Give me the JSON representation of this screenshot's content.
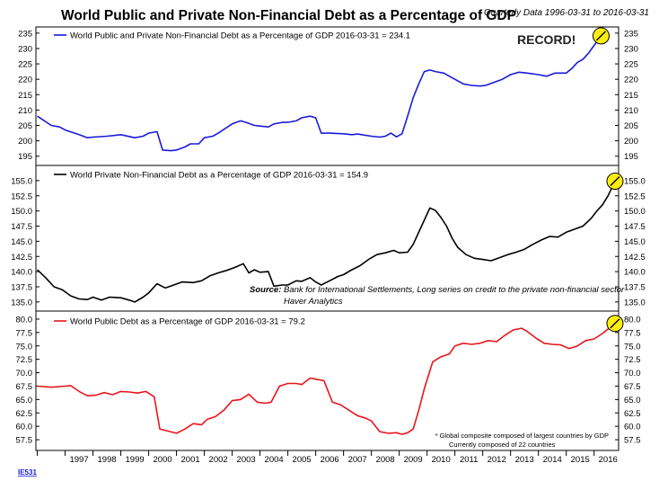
{
  "title": "World Public and Private Non-Financial Debt as a Percentage of GDP",
  "subtitle": "Quarterly Data 1996-03-31 to 2016-03-31",
  "footer_code": "IE531",
  "record_label": "RECORD!",
  "source": {
    "label": "Source:",
    "line1": "Bank for International Settlements, Long series on credit to the private non-financial sector",
    "line2": "Haver Analytics"
  },
  "footnote": {
    "line1": "* Global composite composed of largest countries by GDP",
    "line2": "Currently composed of 22 countries"
  },
  "colors": {
    "total": "#1a1adb",
    "private": "#000000",
    "public": "#e8151b",
    "marker": "#ffee11"
  },
  "chart_data": [
    {
      "type": "line",
      "legend": "World Public and Private Non-Financial Debt as a Percentage of GDP 2016-03-31 = 234.1",
      "ylim": [
        192,
        237
      ],
      "yticks": [
        "235",
        "230",
        "225",
        "220",
        "215",
        "210",
        "205",
        "200",
        "195"
      ],
      "series": [
        {
          "color": "#1a1adb",
          "points": [
            [
              1996.0,
              208
            ],
            [
              1996.5,
              205
            ],
            [
              1996.8,
              204.5
            ],
            [
              1997.0,
              203.5
            ],
            [
              1997.5,
              202
            ],
            [
              1997.8,
              201
            ],
            [
              1998.0,
              201.2
            ],
            [
              1998.5,
              201.5
            ],
            [
              1999.0,
              202
            ],
            [
              1999.5,
              201
            ],
            [
              1999.8,
              201.5
            ],
            [
              2000.0,
              202.5
            ],
            [
              2000.3,
              203
            ],
            [
              2000.5,
              197
            ],
            [
              2000.8,
              196.8
            ],
            [
              2001.0,
              197
            ],
            [
              2001.3,
              198
            ],
            [
              2001.5,
              199
            ],
            [
              2001.8,
              199
            ],
            [
              2002.0,
              201
            ],
            [
              2002.3,
              201.5
            ],
            [
              2002.5,
              202.5
            ],
            [
              2003.0,
              205.5
            ],
            [
              2003.3,
              206.5
            ],
            [
              2003.5,
              206
            ],
            [
              2003.8,
              205
            ],
            [
              2004.0,
              204.8
            ],
            [
              2004.3,
              204.5
            ],
            [
              2004.5,
              205.5
            ],
            [
              2004.8,
              206
            ],
            [
              2005.0,
              206
            ],
            [
              2005.3,
              206.5
            ],
            [
              2005.5,
              207.5
            ],
            [
              2005.8,
              208
            ],
            [
              2006.0,
              207.5
            ],
            [
              2006.2,
              202.5
            ],
            [
              2006.5,
              202.5
            ],
            [
              2007.0,
              202.3
            ],
            [
              2007.3,
              202
            ],
            [
              2007.5,
              202.2
            ],
            [
              2008.0,
              201.5
            ],
            [
              2008.3,
              201.2
            ],
            [
              2008.5,
              201.5
            ],
            [
              2008.7,
              202.5
            ],
            [
              2008.9,
              201.3
            ],
            [
              2009.1,
              202.3
            ],
            [
              2009.3,
              208
            ],
            [
              2009.5,
              214
            ],
            [
              2009.7,
              218.5
            ],
            [
              2009.9,
              222.5
            ],
            [
              2010.1,
              223
            ],
            [
              2010.3,
              222.5
            ],
            [
              2010.6,
              222
            ],
            [
              2011.0,
              220
            ],
            [
              2011.3,
              218.5
            ],
            [
              2011.6,
              218
            ],
            [
              2011.9,
              217.8
            ],
            [
              2012.1,
              218
            ],
            [
              2012.4,
              219
            ],
            [
              2012.7,
              220
            ],
            [
              2013.0,
              221.5
            ],
            [
              2013.3,
              222.3
            ],
            [
              2013.6,
              222
            ],
            [
              2014.0,
              221.5
            ],
            [
              2014.3,
              221
            ],
            [
              2014.6,
              222
            ],
            [
              2015.0,
              222
            ],
            [
              2015.2,
              223.5
            ],
            [
              2015.4,
              225.5
            ],
            [
              2015.6,
              226.5
            ],
            [
              2015.8,
              228.5
            ],
            [
              2016.0,
              231
            ],
            [
              2016.25,
              234.1
            ]
          ]
        }
      ],
      "xlim": [
        1996.5,
        2016.75
      ]
    },
    {
      "type": "line",
      "legend": "World Private Non-Financial Debt as a Percentage of GDP 2016-03-31 = 154.9",
      "ylim": [
        133.5,
        157.5
      ],
      "yticks": [
        "155.0",
        "152.5",
        "150.0",
        "147.5",
        "145.0",
        "142.5",
        "140.0",
        "137.5",
        "135.0"
      ],
      "series": [
        {
          "color": "#000000",
          "points": [
            [
              1996.0,
              140.3
            ],
            [
              1996.3,
              139
            ],
            [
              1996.6,
              137.5
            ],
            [
              1996.9,
              137
            ],
            [
              1997.2,
              136
            ],
            [
              1997.5,
              135.5
            ],
            [
              1997.8,
              135.4
            ],
            [
              1998.0,
              135.8
            ],
            [
              1998.3,
              135.3
            ],
            [
              1998.6,
              135.8
            ],
            [
              1999.0,
              135.7
            ],
            [
              1999.3,
              135.3
            ],
            [
              1999.5,
              135
            ],
            [
              1999.8,
              135.8
            ],
            [
              2000.0,
              136.5
            ],
            [
              2000.3,
              138
            ],
            [
              2000.6,
              137.3
            ],
            [
              2000.9,
              137.8
            ],
            [
              2001.2,
              138.3
            ],
            [
              2001.6,
              138.2
            ],
            [
              2001.9,
              138.5
            ],
            [
              2002.2,
              139.3
            ],
            [
              2002.5,
              139.8
            ],
            [
              2002.8,
              140.2
            ],
            [
              2003.1,
              140.7
            ],
            [
              2003.4,
              141.3
            ],
            [
              2003.6,
              139.8
            ],
            [
              2003.8,
              140.3
            ],
            [
              2004.0,
              139.9
            ],
            [
              2004.3,
              140
            ],
            [
              2004.5,
              137.6
            ],
            [
              2004.8,
              137.8
            ],
            [
              2005.0,
              137.8
            ],
            [
              2005.3,
              138.5
            ],
            [
              2005.5,
              138.4
            ],
            [
              2005.8,
              139
            ],
            [
              2006.0,
              138.3
            ],
            [
              2006.2,
              137.8
            ],
            [
              2006.5,
              138.5
            ],
            [
              2006.8,
              139.2
            ],
            [
              2007.0,
              139.5
            ],
            [
              2007.3,
              140.3
            ],
            [
              2007.6,
              141
            ],
            [
              2007.9,
              142
            ],
            [
              2008.2,
              142.8
            ],
            [
              2008.5,
              143.1
            ],
            [
              2008.8,
              143.5
            ],
            [
              2009.0,
              143.1
            ],
            [
              2009.3,
              143.2
            ],
            [
              2009.5,
              144.5
            ],
            [
              2009.7,
              146.5
            ],
            [
              2009.9,
              148.5
            ],
            [
              2010.1,
              150.5
            ],
            [
              2010.3,
              150.1
            ],
            [
              2010.5,
              148.9
            ],
            [
              2010.7,
              147.5
            ],
            [
              2010.9,
              145.5
            ],
            [
              2011.1,
              144
            ],
            [
              2011.4,
              142.8
            ],
            [
              2011.7,
              142.2
            ],
            [
              2012.0,
              142
            ],
            [
              2012.3,
              141.8
            ],
            [
              2012.6,
              142.3
            ],
            [
              2012.9,
              142.8
            ],
            [
              2013.2,
              143.2
            ],
            [
              2013.5,
              143.7
            ],
            [
              2013.8,
              144.5
            ],
            [
              2014.1,
              145.2
            ],
            [
              2014.4,
              145.8
            ],
            [
              2014.7,
              145.7
            ],
            [
              2015.0,
              146.5
            ],
            [
              2015.3,
              147
            ],
            [
              2015.6,
              147.5
            ],
            [
              2015.9,
              148.8
            ],
            [
              2016.1,
              150
            ],
            [
              2016.3,
              151
            ],
            [
              2016.5,
              152.5
            ],
            [
              2016.75,
              154.9
            ]
          ]
        }
      ],
      "xlim": [
        1996.0,
        2016.75
      ]
    },
    {
      "type": "line",
      "legend": "World Public Debt as a Percentage of GDP 2016-03-31 = 79.2",
      "ylim": [
        55.5,
        81.5
      ],
      "yticks": [
        "80.0",
        "77.5",
        "75.0",
        "72.5",
        "70.0",
        "67.5",
        "65.0",
        "62.5",
        "60.0",
        "57.5"
      ],
      "xticks": [
        "1997",
        "1998",
        "1999",
        "2000",
        "2001",
        "2002",
        "2003",
        "2004",
        "2005",
        "2006",
        "2007",
        "2008",
        "2009",
        "2010",
        "2011",
        "2012",
        "2013",
        "2014",
        "2015",
        "2016"
      ],
      "series": [
        {
          "color": "#e8151b",
          "points": [
            [
              1996.0,
              67.5
            ],
            [
              1996.5,
              67.3
            ],
            [
              1997.0,
              67.5
            ],
            [
              1997.2,
              67.6
            ],
            [
              1997.5,
              66.5
            ],
            [
              1997.8,
              65.7
            ],
            [
              1998.1,
              65.8
            ],
            [
              1998.4,
              66.3
            ],
            [
              1998.7,
              65.9
            ],
            [
              1999.0,
              66.5
            ],
            [
              1999.3,
              66.4
            ],
            [
              1999.6,
              66.2
            ],
            [
              1999.9,
              66.5
            ],
            [
              2000.2,
              65.5
            ],
            [
              2000.4,
              59.5
            ],
            [
              2000.7,
              59.1
            ],
            [
              2001.0,
              58.7
            ],
            [
              2001.3,
              59.5
            ],
            [
              2001.6,
              60.5
            ],
            [
              2001.9,
              60.3
            ],
            [
              2002.1,
              61.3
            ],
            [
              2002.4,
              61.8
            ],
            [
              2002.7,
              63
            ],
            [
              2003.0,
              64.8
            ],
            [
              2003.3,
              65
            ],
            [
              2003.6,
              66
            ],
            [
              2003.9,
              64.5
            ],
            [
              2004.2,
              64.3
            ],
            [
              2004.4,
              64.5
            ],
            [
              2004.7,
              67.5
            ],
            [
              2005.0,
              68
            ],
            [
              2005.3,
              68
            ],
            [
              2005.5,
              67.8
            ],
            [
              2005.8,
              69
            ],
            [
              2006.0,
              68.8
            ],
            [
              2006.3,
              68.5
            ],
            [
              2006.6,
              64.5
            ],
            [
              2006.9,
              64
            ],
            [
              2007.2,
              63
            ],
            [
              2007.5,
              62
            ],
            [
              2007.8,
              61.5
            ],
            [
              2008.0,
              61
            ],
            [
              2008.3,
              59
            ],
            [
              2008.6,
              58.7
            ],
            [
              2008.9,
              58.8
            ],
            [
              2009.1,
              58.5
            ],
            [
              2009.3,
              58.8
            ],
            [
              2009.5,
              59.5
            ],
            [
              2009.7,
              63
            ],
            [
              2009.9,
              67
            ],
            [
              2010.2,
              72
            ],
            [
              2010.5,
              73
            ],
            [
              2010.8,
              73.5
            ],
            [
              2011.0,
              75
            ],
            [
              2011.3,
              75.5
            ],
            [
              2011.6,
              75.3
            ],
            [
              2011.9,
              75.5
            ],
            [
              2012.2,
              76
            ],
            [
              2012.5,
              75.8
            ],
            [
              2012.8,
              77
            ],
            [
              2013.1,
              78
            ],
            [
              2013.4,
              78.3
            ],
            [
              2013.6,
              77.7
            ],
            [
              2013.9,
              76.5
            ],
            [
              2014.2,
              75.5
            ],
            [
              2014.5,
              75.3
            ],
            [
              2014.8,
              75.2
            ],
            [
              2015.1,
              74.5
            ],
            [
              2015.4,
              75
            ],
            [
              2015.7,
              76
            ],
            [
              2016.0,
              76.3
            ],
            [
              2016.3,
              77.3
            ],
            [
              2016.75,
              79.2
            ]
          ]
        }
      ],
      "xlim": [
        1996.0,
        2016.75
      ]
    }
  ]
}
